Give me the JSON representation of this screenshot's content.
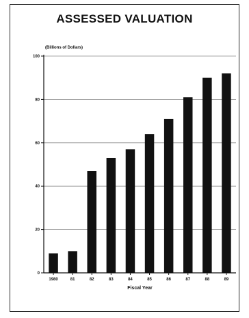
{
  "chart_data": {
    "type": "bar",
    "title": "ASSESSED VALUATION",
    "unit_label": "(Billions of Dollars)",
    "xlabel": "Fiscal Year",
    "ylabel": "",
    "categories": [
      "1980",
      "81",
      "82",
      "83",
      "84",
      "85",
      "86",
      "87",
      "88",
      "89"
    ],
    "values": [
      9,
      10,
      47,
      53,
      57,
      64,
      71,
      81,
      90,
      92
    ],
    "ylim": [
      0,
      100
    ],
    "yticks": [
      0,
      20,
      40,
      60,
      80,
      100
    ],
    "grid": true,
    "colors": {
      "bar": "#111111",
      "grid": "#8a8a8a",
      "axis": "#111111"
    }
  }
}
